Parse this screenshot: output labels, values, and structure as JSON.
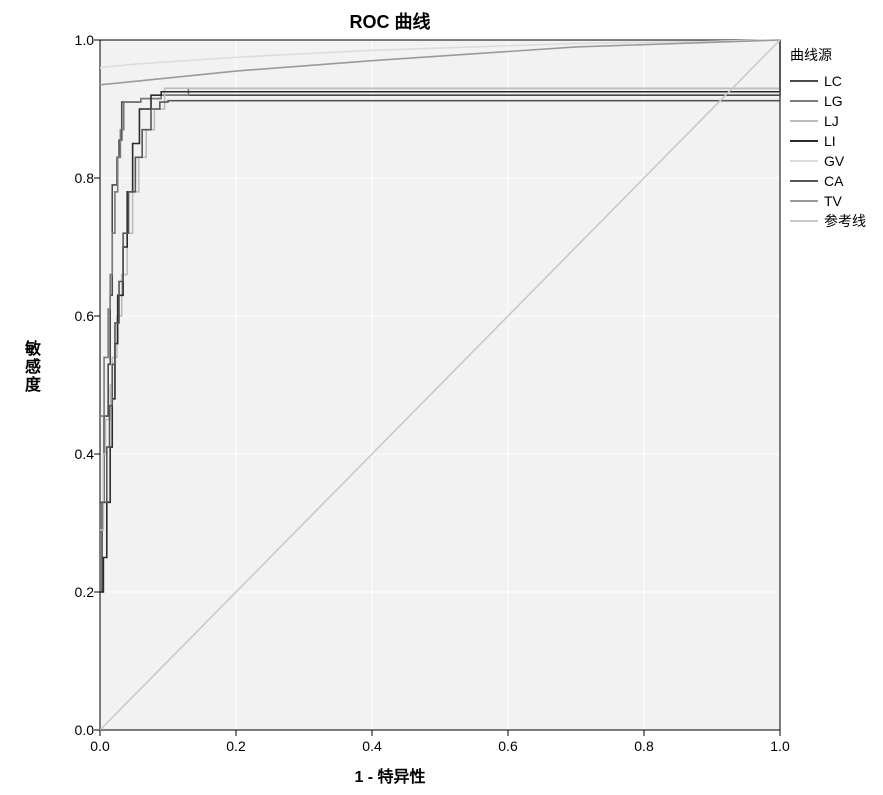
{
  "chart": {
    "type": "line",
    "title": "ROC 曲线",
    "title_fontsize": 18,
    "xlabel": "1 - 特异性",
    "ylabel": "敏感度",
    "label_fontsize": 16,
    "tick_fontsize": 14,
    "xlim": [
      0.0,
      1.0
    ],
    "ylim": [
      0.0,
      1.0
    ],
    "xticks": [
      0.0,
      0.2,
      0.4,
      0.6,
      0.8,
      1.0
    ],
    "yticks": [
      0.0,
      0.2,
      0.4,
      0.6,
      0.8,
      1.0
    ],
    "background_color": "#f2f2f2",
    "border_color": "#000000",
    "grid_color": "#ffffff",
    "reference_line_color": "#c9c9c9",
    "line_width": 1.6,
    "legend": {
      "title": "曲线源",
      "items": [
        "LC",
        "LG",
        "LJ",
        "LI",
        "GV",
        "CA",
        "TV",
        "参考线"
      ]
    },
    "series": [
      {
        "name": "LC",
        "color": "#4a4a4a",
        "points": [
          [
            0.0,
            0.2
          ],
          [
            0.003,
            0.33
          ],
          [
            0.006,
            0.455
          ],
          [
            0.01,
            0.455
          ],
          [
            0.012,
            0.53
          ],
          [
            0.015,
            0.63
          ],
          [
            0.018,
            0.79
          ],
          [
            0.022,
            0.79
          ],
          [
            0.025,
            0.83
          ],
          [
            0.028,
            0.855
          ],
          [
            0.032,
            0.91
          ],
          [
            0.06,
            0.915
          ],
          [
            0.09,
            0.92
          ],
          [
            1.0,
            1.0
          ]
        ]
      },
      {
        "name": "LG",
        "color": "#7a7a7a",
        "points": [
          [
            0.0,
            0.455
          ],
          [
            0.004,
            0.455
          ],
          [
            0.006,
            0.54
          ],
          [
            0.01,
            0.54
          ],
          [
            0.012,
            0.61
          ],
          [
            0.015,
            0.66
          ],
          [
            0.018,
            0.72
          ],
          [
            0.022,
            0.78
          ],
          [
            0.026,
            0.83
          ],
          [
            0.03,
            0.87
          ],
          [
            0.035,
            0.91
          ],
          [
            0.04,
            0.91
          ],
          [
            0.06,
            0.915
          ],
          [
            0.09,
            0.92
          ],
          [
            0.13,
            0.93
          ],
          [
            1.0,
            1.0
          ]
        ]
      },
      {
        "name": "LJ",
        "color": "#bdbdbd",
        "points": [
          [
            0.0,
            0.29
          ],
          [
            0.005,
            0.4
          ],
          [
            0.008,
            0.45
          ],
          [
            0.012,
            0.45
          ],
          [
            0.015,
            0.5
          ],
          [
            0.018,
            0.54
          ],
          [
            0.025,
            0.6
          ],
          [
            0.032,
            0.66
          ],
          [
            0.04,
            0.72
          ],
          [
            0.048,
            0.78
          ],
          [
            0.057,
            0.83
          ],
          [
            0.068,
            0.87
          ],
          [
            0.08,
            0.9
          ],
          [
            0.095,
            0.93
          ],
          [
            1.0,
            1.0
          ]
        ]
      },
      {
        "name": "LI",
        "color": "#2b2b2b",
        "points": [
          [
            0.0,
            0.2
          ],
          [
            0.005,
            0.25
          ],
          [
            0.01,
            0.33
          ],
          [
            0.015,
            0.41
          ],
          [
            0.018,
            0.48
          ],
          [
            0.022,
            0.56
          ],
          [
            0.026,
            0.63
          ],
          [
            0.03,
            0.63
          ],
          [
            0.034,
            0.7
          ],
          [
            0.04,
            0.78
          ],
          [
            0.048,
            0.85
          ],
          [
            0.058,
            0.9
          ],
          [
            0.075,
            0.92
          ],
          [
            0.09,
            0.925
          ],
          [
            1.0,
            1.0
          ]
        ]
      },
      {
        "name": "GV",
        "color": "#dcdcdc",
        "points": [
          [
            0.0,
            0.96
          ],
          [
            0.05,
            0.965
          ],
          [
            0.2,
            0.975
          ],
          [
            0.4,
            0.985
          ],
          [
            0.7,
            0.995
          ],
          [
            1.0,
            1.0
          ]
        ]
      },
      {
        "name": "CA",
        "color": "#565656",
        "points": [
          [
            0.0,
            0.33
          ],
          [
            0.006,
            0.33
          ],
          [
            0.01,
            0.41
          ],
          [
            0.014,
            0.47
          ],
          [
            0.018,
            0.53
          ],
          [
            0.022,
            0.59
          ],
          [
            0.028,
            0.65
          ],
          [
            0.034,
            0.72
          ],
          [
            0.042,
            0.78
          ],
          [
            0.052,
            0.83
          ],
          [
            0.062,
            0.87
          ],
          [
            0.075,
            0.9
          ],
          [
            0.088,
            0.91
          ],
          [
            0.1,
            0.912
          ],
          [
            1.0,
            1.0
          ]
        ]
      },
      {
        "name": "TV",
        "color": "#9a9a9a",
        "points": [
          [
            0.0,
            0.935
          ],
          [
            0.05,
            0.94
          ],
          [
            0.2,
            0.955
          ],
          [
            0.4,
            0.97
          ],
          [
            0.7,
            0.99
          ],
          [
            1.0,
            1.0
          ]
        ]
      },
      {
        "name": "参考线",
        "color": "#c9c9c9",
        "points": [
          [
            0.0,
            0.0
          ],
          [
            1.0,
            1.0
          ]
        ]
      }
    ]
  }
}
